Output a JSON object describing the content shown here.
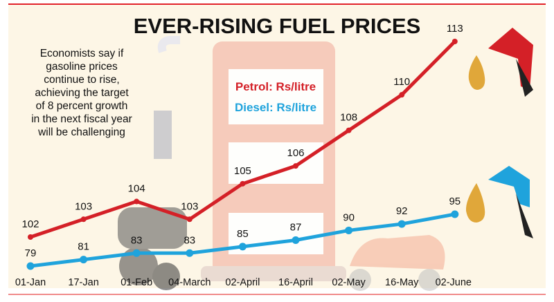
{
  "chart_data": {
    "type": "line",
    "title": "EVER-RISING FUEL PRICES",
    "annotation": [
      "Economists say if",
      "gasoline prices",
      "continue to rise,",
      "achieving the target",
      "of 8 percent growth",
      "in the next fiscal year",
      "will be challenging"
    ],
    "categories": [
      "01-Jan",
      "17-Jan",
      "01-Feb",
      "04-March",
      "02-April",
      "16-April",
      "02-May",
      "16-May",
      "02-June"
    ],
    "series": [
      {
        "name": "Petrol: Rs/litre",
        "color": "#d42027",
        "values": [
          102,
          103,
          104,
          103,
          105,
          106,
          108,
          110,
          113
        ]
      },
      {
        "name": "Diesel: Rs/litre",
        "color": "#1fa3dc",
        "values": [
          79,
          81,
          83,
          83,
          85,
          87,
          90,
          92,
          95
        ]
      }
    ],
    "xlabel": "",
    "ylabel": "",
    "grid": false,
    "legend": "top-center",
    "colors": {
      "background": "#fdf6e6",
      "frame": "#e2222a",
      "pump": "#f6c7b7"
    }
  }
}
